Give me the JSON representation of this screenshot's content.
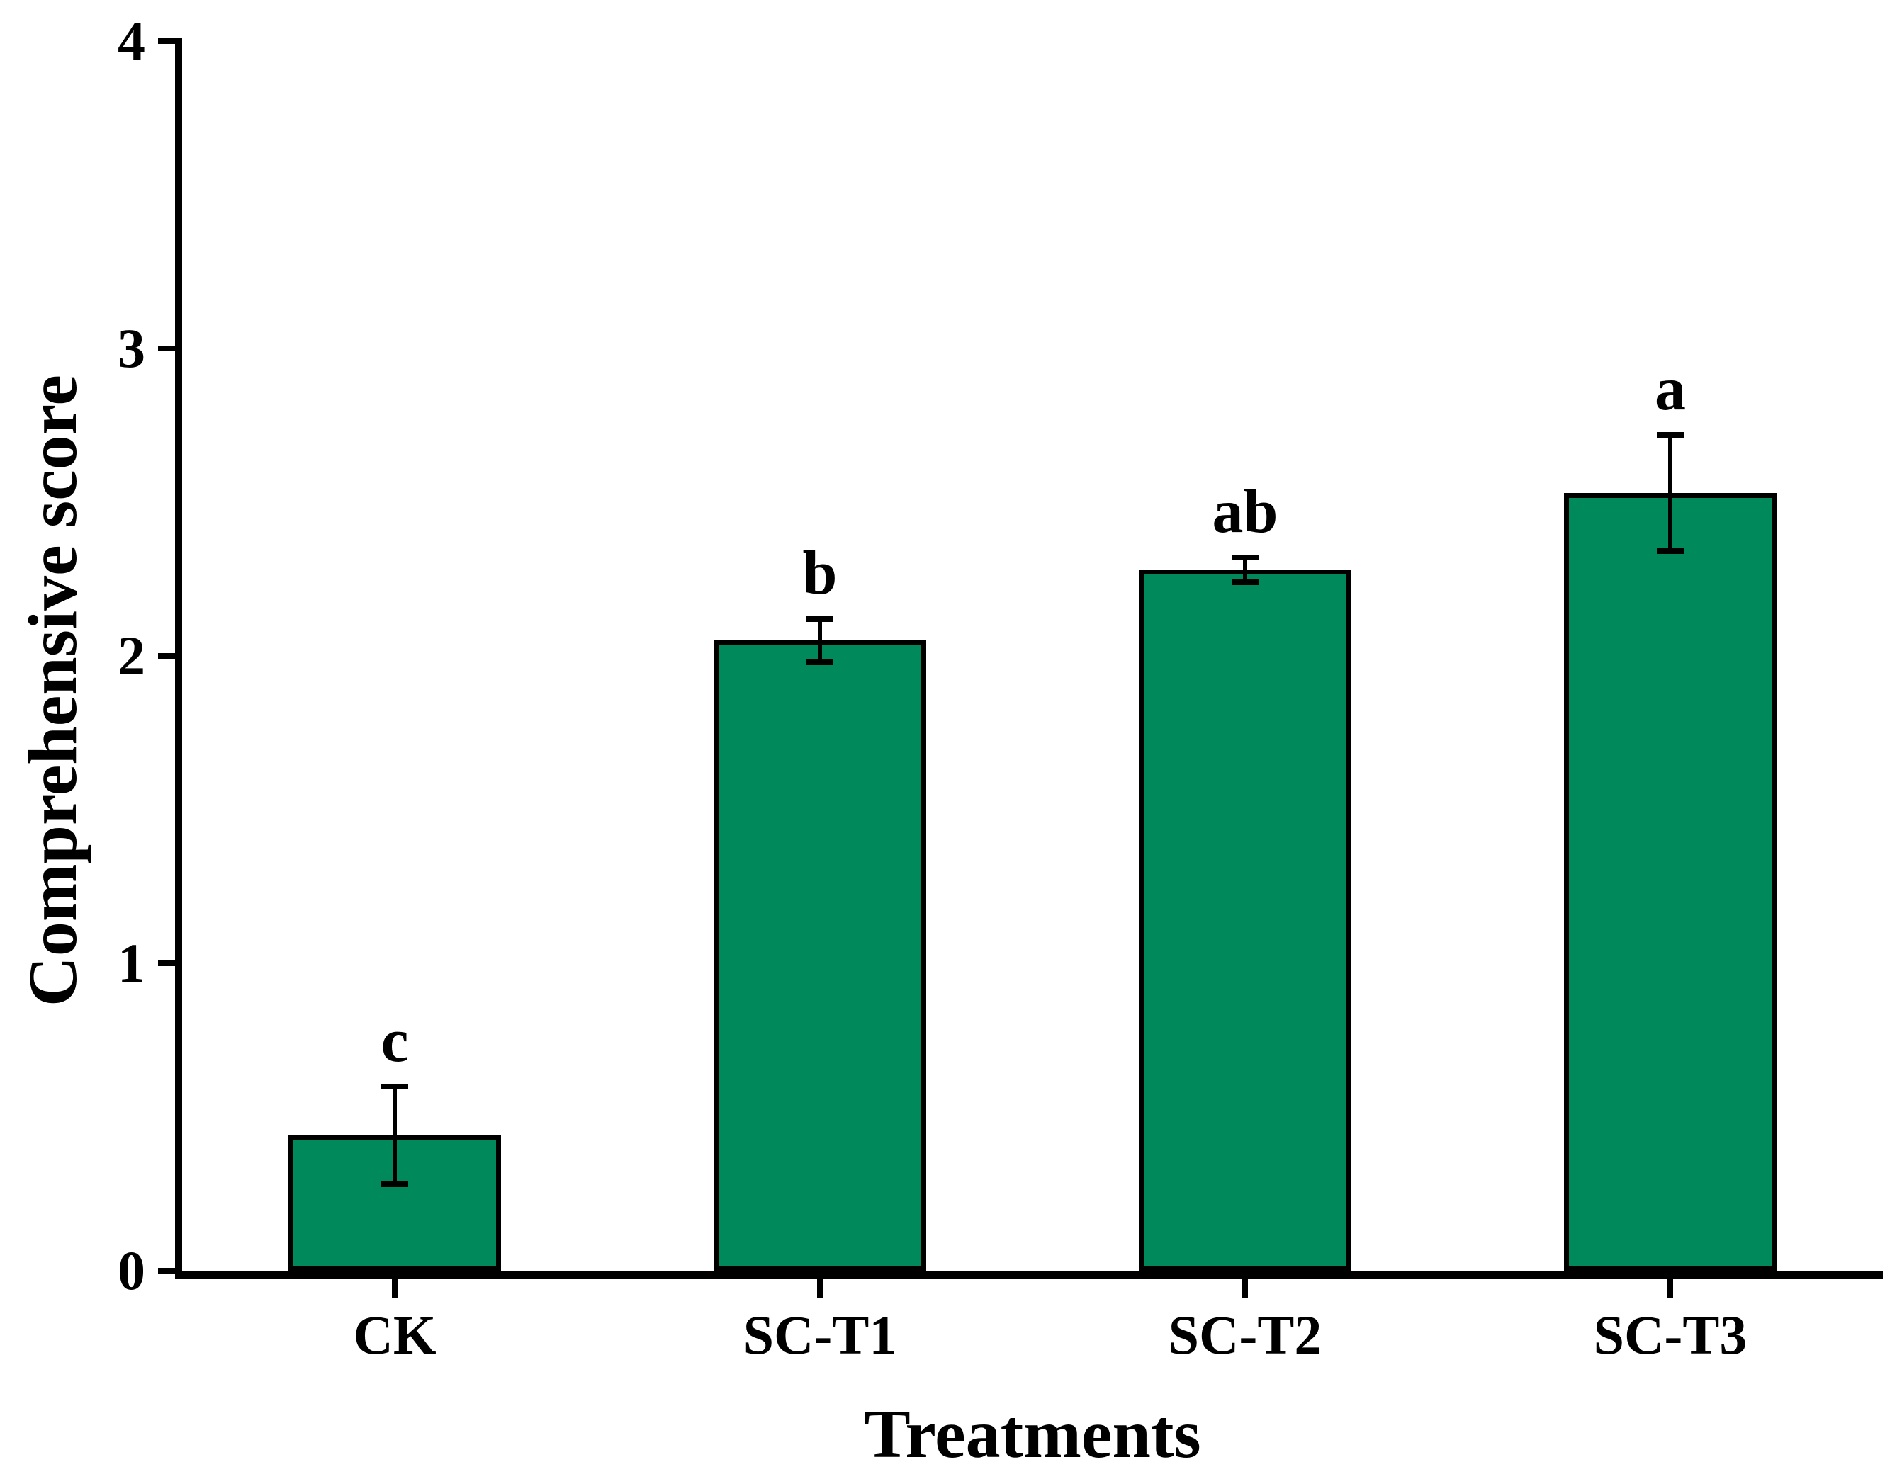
{
  "chart_data": {
    "type": "bar",
    "title": "",
    "xlabel": "Treatments",
    "ylabel": "Comprehensive score",
    "categories": [
      "CK",
      "SC-T1",
      "SC-T2",
      "SC-T3"
    ],
    "values": [
      0.44,
      2.05,
      2.28,
      2.53
    ],
    "errors": [
      0.16,
      0.07,
      0.04,
      0.19
    ],
    "sig_letters": [
      "c",
      "b",
      "ab",
      "a"
    ],
    "ylim": [
      0,
      4
    ],
    "yticks": [
      0,
      1,
      2,
      3,
      4
    ],
    "bar_color": "#008a5b",
    "bar_border_color": "#000000",
    "axis_color": "#000000",
    "grid": false,
    "legend_position": "none"
  }
}
